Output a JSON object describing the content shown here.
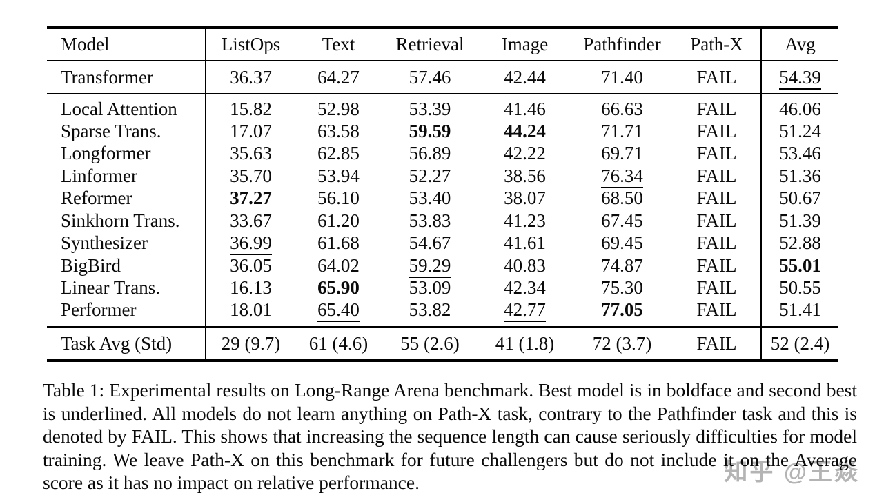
{
  "table": {
    "columns": [
      "Model",
      "ListOps",
      "Text",
      "Retrieval",
      "Image",
      "Pathfinder",
      "Path-X",
      "Avg"
    ],
    "transformer_rows": [
      {
        "model": "Transformer",
        "values": [
          "36.37",
          "64.27",
          "57.46",
          "42.44",
          "71.40",
          "FAIL",
          "54.39"
        ],
        "styles": [
          "",
          "",
          "",
          "",
          "",
          "",
          "u"
        ]
      }
    ],
    "model_rows": [
      {
        "model": "Local Attention",
        "values": [
          "15.82",
          "52.98",
          "53.39",
          "41.46",
          "66.63",
          "FAIL",
          "46.06"
        ],
        "styles": [
          "",
          "",
          "",
          "",
          "",
          "",
          ""
        ]
      },
      {
        "model": "Sparse Trans.",
        "values": [
          "17.07",
          "63.58",
          "59.59",
          "44.24",
          "71.71",
          "FAIL",
          "51.24"
        ],
        "styles": [
          "",
          "",
          "b",
          "b",
          "",
          "",
          ""
        ]
      },
      {
        "model": "Longformer",
        "values": [
          "35.63",
          "62.85",
          "56.89",
          "42.22",
          "69.71",
          "FAIL",
          "53.46"
        ],
        "styles": [
          "",
          "",
          "",
          "",
          "",
          "",
          ""
        ]
      },
      {
        "model": "Linformer",
        "values": [
          "35.70",
          "53.94",
          "52.27",
          "38.56",
          "76.34",
          "FAIL",
          "51.36"
        ],
        "styles": [
          "",
          "",
          "",
          "",
          "u",
          "",
          ""
        ]
      },
      {
        "model": "Reformer",
        "values": [
          "37.27",
          "56.10",
          "53.40",
          "38.07",
          "68.50",
          "FAIL",
          "50.67"
        ],
        "styles": [
          "b",
          "",
          "",
          "",
          "",
          "",
          ""
        ]
      },
      {
        "model": "Sinkhorn Trans.",
        "values": [
          "33.67",
          "61.20",
          "53.83",
          "41.23",
          "67.45",
          "FAIL",
          "51.39"
        ],
        "styles": [
          "",
          "",
          "",
          "",
          "",
          "",
          ""
        ]
      },
      {
        "model": "Synthesizer",
        "values": [
          "36.99",
          "61.68",
          "54.67",
          "41.61",
          "69.45",
          "FAIL",
          "52.88"
        ],
        "styles": [
          "u",
          "",
          "",
          "",
          "",
          "",
          ""
        ]
      },
      {
        "model": "BigBird",
        "values": [
          "36.05",
          "64.02",
          "59.29",
          "40.83",
          "74.87",
          "FAIL",
          "55.01"
        ],
        "styles": [
          "",
          "",
          "u",
          "",
          "",
          "",
          "b"
        ]
      },
      {
        "model": "Linear Trans.",
        "values": [
          "16.13",
          "65.90",
          "53.09",
          "42.34",
          "75.30",
          "FAIL",
          "50.55"
        ],
        "styles": [
          "",
          "b",
          "",
          "",
          "",
          "",
          ""
        ]
      },
      {
        "model": "Performer",
        "values": [
          "18.01",
          "65.40",
          "53.82",
          "42.77",
          "77.05",
          "FAIL",
          "51.41"
        ],
        "styles": [
          "",
          "u",
          "",
          "u",
          "b",
          "",
          ""
        ]
      }
    ],
    "footer_rows": [
      {
        "model": "Task Avg (Std)",
        "values": [
          "29 (9.7)",
          "61 (4.6)",
          "55 (2.6)",
          "41 (1.8)",
          "72 (3.7)",
          "FAIL",
          "52 (2.4)"
        ],
        "styles": [
          "",
          "",
          "",
          "",
          "",
          "",
          ""
        ]
      }
    ]
  },
  "caption": "Table 1: Experimental results on Long-Range Arena benchmark. Best model is in boldface and second best is underlined. All models do not learn anything on Path-X task, contrary to the Pathfinder task and this is denoted by FAIL. This shows that increasing the sequence length can cause seriously difficulties for model training. We leave Path-X on this benchmark for future challengers but do not include it on the Average score as it has no impact on relative performance.",
  "watermark": "知乎 @王焱"
}
